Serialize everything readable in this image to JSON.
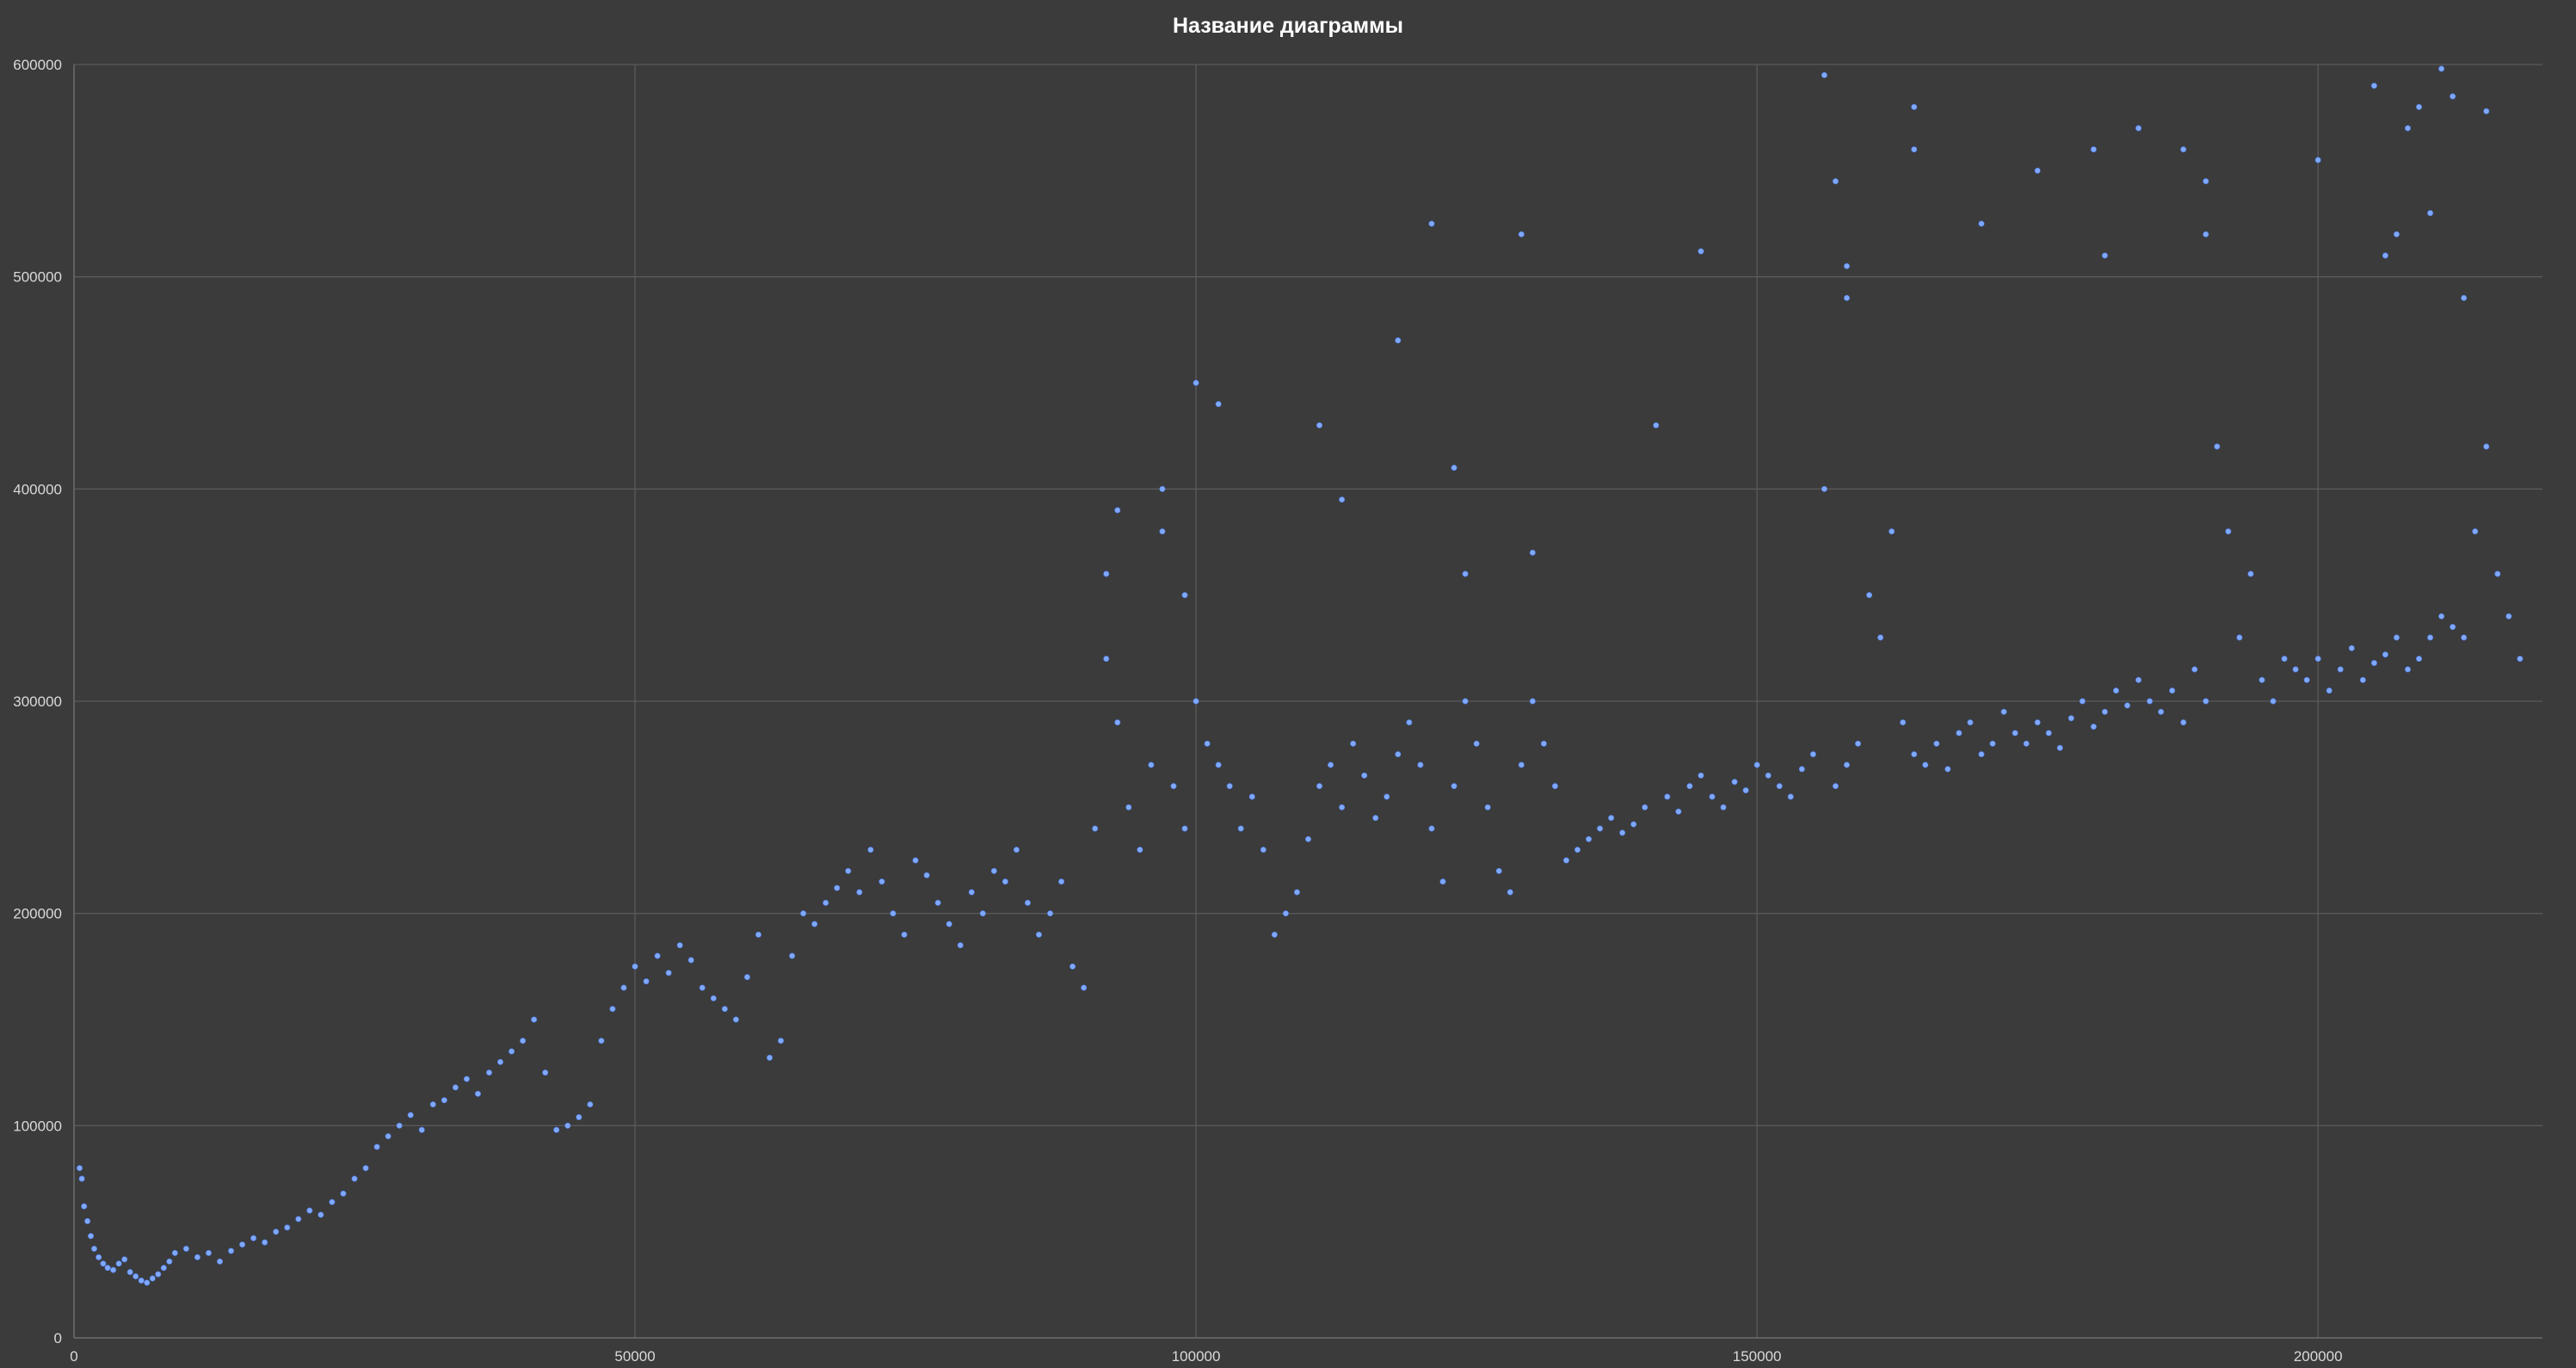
{
  "chart_data": {
    "type": "scatter",
    "title": "Название диаграммы",
    "xlabel": "",
    "ylabel": "",
    "xlim": [
      0,
      220000
    ],
    "ylim": [
      0,
      600000
    ],
    "x_ticks": [
      0,
      50000,
      100000,
      150000,
      200000
    ],
    "y_ticks": [
      0,
      100000,
      200000,
      300000,
      400000,
      500000,
      600000
    ],
    "x_tick_labels": [
      "0",
      "50000",
      "100000",
      "150000",
      "200000"
    ],
    "y_tick_labels": [
      "0",
      "100000",
      "200000",
      "300000",
      "400000",
      "500000",
      "600000"
    ],
    "grid": true,
    "legend": "none",
    "marker_color": "#7fa8ff",
    "background_color": "#3b3b3b",
    "series": [
      {
        "values": [
          [
            500,
            80000
          ],
          [
            700,
            75000
          ],
          [
            900,
            62000
          ],
          [
            1200,
            55000
          ],
          [
            1500,
            48000
          ],
          [
            1800,
            42000
          ],
          [
            2200,
            38000
          ],
          [
            2600,
            35000
          ],
          [
            3000,
            33000
          ],
          [
            3500,
            32000
          ],
          [
            4000,
            35000
          ],
          [
            4500,
            37000
          ],
          [
            5000,
            31000
          ],
          [
            5500,
            29000
          ],
          [
            6000,
            27000
          ],
          [
            6500,
            26000
          ],
          [
            7000,
            28000
          ],
          [
            7500,
            30000
          ],
          [
            8000,
            33000
          ],
          [
            8500,
            36000
          ],
          [
            9000,
            40000
          ],
          [
            10000,
            42000
          ],
          [
            11000,
            38000
          ],
          [
            12000,
            40000
          ],
          [
            13000,
            36000
          ],
          [
            14000,
            41000
          ],
          [
            15000,
            44000
          ],
          [
            16000,
            47000
          ],
          [
            17000,
            45000
          ],
          [
            18000,
            50000
          ],
          [
            19000,
            52000
          ],
          [
            20000,
            56000
          ],
          [
            21000,
            60000
          ],
          [
            22000,
            58000
          ],
          [
            23000,
            64000
          ],
          [
            24000,
            68000
          ],
          [
            25000,
            75000
          ],
          [
            26000,
            80000
          ],
          [
            27000,
            90000
          ],
          [
            28000,
            95000
          ],
          [
            29000,
            100000
          ],
          [
            30000,
            105000
          ],
          [
            31000,
            98000
          ],
          [
            32000,
            110000
          ],
          [
            33000,
            112000
          ],
          [
            34000,
            118000
          ],
          [
            35000,
            122000
          ],
          [
            36000,
            115000
          ],
          [
            37000,
            125000
          ],
          [
            38000,
            130000
          ],
          [
            39000,
            135000
          ],
          [
            40000,
            140000
          ],
          [
            41000,
            150000
          ],
          [
            42000,
            125000
          ],
          [
            43000,
            98000
          ],
          [
            44000,
            100000
          ],
          [
            45000,
            104000
          ],
          [
            46000,
            110000
          ],
          [
            47000,
            140000
          ],
          [
            48000,
            155000
          ],
          [
            49000,
            165000
          ],
          [
            50000,
            175000
          ],
          [
            51000,
            168000
          ],
          [
            52000,
            180000
          ],
          [
            53000,
            172000
          ],
          [
            54000,
            185000
          ],
          [
            55000,
            178000
          ],
          [
            56000,
            165000
          ],
          [
            57000,
            160000
          ],
          [
            58000,
            155000
          ],
          [
            59000,
            150000
          ],
          [
            60000,
            170000
          ],
          [
            61000,
            190000
          ],
          [
            62000,
            132000
          ],
          [
            63000,
            140000
          ],
          [
            64000,
            180000
          ],
          [
            65000,
            200000
          ],
          [
            66000,
            195000
          ],
          [
            67000,
            205000
          ],
          [
            68000,
            212000
          ],
          [
            69000,
            220000
          ],
          [
            70000,
            210000
          ],
          [
            71000,
            230000
          ],
          [
            72000,
            215000
          ],
          [
            73000,
            200000
          ],
          [
            74000,
            190000
          ],
          [
            75000,
            225000
          ],
          [
            76000,
            218000
          ],
          [
            77000,
            205000
          ],
          [
            78000,
            195000
          ],
          [
            79000,
            185000
          ],
          [
            80000,
            210000
          ],
          [
            81000,
            200000
          ],
          [
            82000,
            220000
          ],
          [
            83000,
            215000
          ],
          [
            84000,
            230000
          ],
          [
            85000,
            205000
          ],
          [
            86000,
            190000
          ],
          [
            87000,
            200000
          ],
          [
            88000,
            215000
          ],
          [
            89000,
            175000
          ],
          [
            90000,
            165000
          ],
          [
            91000,
            240000
          ],
          [
            92000,
            320000
          ],
          [
            93000,
            290000
          ],
          [
            94000,
            250000
          ],
          [
            95000,
            230000
          ],
          [
            96000,
            270000
          ],
          [
            97000,
            380000
          ],
          [
            98000,
            260000
          ],
          [
            99000,
            240000
          ],
          [
            100000,
            300000
          ],
          [
            101000,
            280000
          ],
          [
            102000,
            270000
          ],
          [
            103000,
            260000
          ],
          [
            104000,
            240000
          ],
          [
            105000,
            255000
          ],
          [
            106000,
            230000
          ],
          [
            107000,
            190000
          ],
          [
            108000,
            200000
          ],
          [
            109000,
            210000
          ],
          [
            110000,
            235000
          ],
          [
            111000,
            260000
          ],
          [
            112000,
            270000
          ],
          [
            113000,
            250000
          ],
          [
            114000,
            280000
          ],
          [
            115000,
            265000
          ],
          [
            116000,
            245000
          ],
          [
            117000,
            255000
          ],
          [
            118000,
            275000
          ],
          [
            119000,
            290000
          ],
          [
            120000,
            270000
          ],
          [
            121000,
            240000
          ],
          [
            122000,
            215000
          ],
          [
            123000,
            260000
          ],
          [
            124000,
            300000
          ],
          [
            125000,
            280000
          ],
          [
            126000,
            250000
          ],
          [
            127000,
            220000
          ],
          [
            128000,
            210000
          ],
          [
            129000,
            270000
          ],
          [
            130000,
            300000
          ],
          [
            131000,
            280000
          ],
          [
            132000,
            260000
          ],
          [
            133000,
            225000
          ],
          [
            134000,
            230000
          ],
          [
            135000,
            235000
          ],
          [
            136000,
            240000
          ],
          [
            137000,
            245000
          ],
          [
            138000,
            238000
          ],
          [
            139000,
            242000
          ],
          [
            140000,
            250000
          ],
          [
            141000,
            430000
          ],
          [
            142000,
            255000
          ],
          [
            143000,
            248000
          ],
          [
            144000,
            260000
          ],
          [
            145000,
            265000
          ],
          [
            146000,
            255000
          ],
          [
            147000,
            250000
          ],
          [
            148000,
            262000
          ],
          [
            149000,
            258000
          ],
          [
            150000,
            270000
          ],
          [
            151000,
            265000
          ],
          [
            152000,
            260000
          ],
          [
            153000,
            255000
          ],
          [
            154000,
            268000
          ],
          [
            155000,
            275000
          ],
          [
            156000,
            400000
          ],
          [
            157000,
            260000
          ],
          [
            158000,
            270000
          ],
          [
            159000,
            280000
          ],
          [
            160000,
            350000
          ],
          [
            161000,
            330000
          ],
          [
            162000,
            380000
          ],
          [
            163000,
            290000
          ],
          [
            164000,
            275000
          ],
          [
            165000,
            270000
          ],
          [
            166000,
            280000
          ],
          [
            167000,
            268000
          ],
          [
            168000,
            285000
          ],
          [
            169000,
            290000
          ],
          [
            170000,
            275000
          ],
          [
            171000,
            280000
          ],
          [
            172000,
            295000
          ],
          [
            173000,
            285000
          ],
          [
            174000,
            280000
          ],
          [
            175000,
            290000
          ],
          [
            176000,
            285000
          ],
          [
            177000,
            278000
          ],
          [
            178000,
            292000
          ],
          [
            179000,
            300000
          ],
          [
            180000,
            288000
          ],
          [
            181000,
            295000
          ],
          [
            182000,
            305000
          ],
          [
            183000,
            298000
          ],
          [
            184000,
            310000
          ],
          [
            185000,
            300000
          ],
          [
            186000,
            295000
          ],
          [
            187000,
            305000
          ],
          [
            188000,
            290000
          ],
          [
            189000,
            315000
          ],
          [
            190000,
            300000
          ],
          [
            191000,
            420000
          ],
          [
            192000,
            380000
          ],
          [
            193000,
            330000
          ],
          [
            194000,
            360000
          ],
          [
            195000,
            310000
          ],
          [
            196000,
            300000
          ],
          [
            197000,
            320000
          ],
          [
            198000,
            315000
          ],
          [
            199000,
            310000
          ],
          [
            200000,
            320000
          ],
          [
            201000,
            305000
          ],
          [
            202000,
            315000
          ],
          [
            203000,
            325000
          ],
          [
            204000,
            310000
          ],
          [
            205000,
            318000
          ],
          [
            206000,
            322000
          ],
          [
            207000,
            330000
          ],
          [
            208000,
            315000
          ],
          [
            209000,
            320000
          ],
          [
            210000,
            330000
          ],
          [
            211000,
            340000
          ],
          [
            212000,
            335000
          ],
          [
            213000,
            330000
          ],
          [
            214000,
            380000
          ],
          [
            215000,
            420000
          ],
          [
            216000,
            360000
          ],
          [
            217000,
            340000
          ],
          [
            218000,
            320000
          ],
          [
            92000,
            360000
          ],
          [
            93000,
            390000
          ],
          [
            97000,
            400000
          ],
          [
            99000,
            350000
          ],
          [
            100000,
            450000
          ],
          [
            102000,
            440000
          ],
          [
            111000,
            430000
          ],
          [
            113000,
            395000
          ],
          [
            118000,
            470000
          ],
          [
            121000,
            525000
          ],
          [
            123000,
            410000
          ],
          [
            124000,
            360000
          ],
          [
            129000,
            520000
          ],
          [
            130000,
            370000
          ],
          [
            145000,
            512000
          ],
          [
            156000,
            595000
          ],
          [
            157000,
            545000
          ],
          [
            158000,
            505000
          ],
          [
            158000,
            490000
          ],
          [
            164000,
            580000
          ],
          [
            164000,
            560000
          ],
          [
            170000,
            525000
          ],
          [
            175000,
            550000
          ],
          [
            180000,
            560000
          ],
          [
            181000,
            510000
          ],
          [
            184000,
            570000
          ],
          [
            188000,
            560000
          ],
          [
            190000,
            545000
          ],
          [
            190000,
            520000
          ],
          [
            200000,
            555000
          ],
          [
            205000,
            590000
          ],
          [
            208000,
            570000
          ],
          [
            209000,
            580000
          ],
          [
            210000,
            530000
          ],
          [
            211000,
            598000
          ],
          [
            212000,
            585000
          ],
          [
            215000,
            578000
          ],
          [
            207000,
            520000
          ],
          [
            206000,
            510000
          ],
          [
            213000,
            490000
          ]
        ]
      }
    ]
  }
}
